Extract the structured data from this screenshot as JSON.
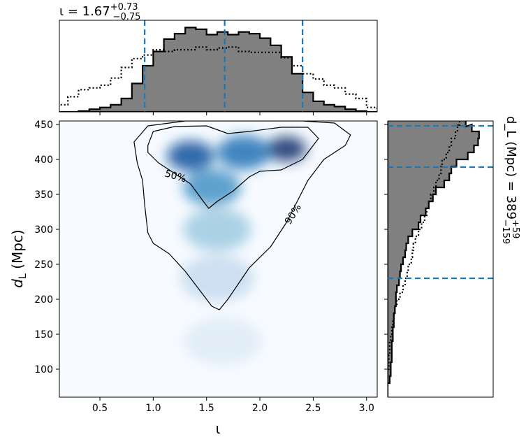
{
  "chart_data": [
    {
      "type": "heatmap",
      "panel": "joint",
      "xlabel": "ι",
      "ylabel": "d_L (Mpc)",
      "xlim": [
        0.12,
        3.1
      ],
      "ylim": [
        60,
        455
      ],
      "xticks": [
        "0.5",
        "1.0",
        "1.5",
        "2.0",
        "2.5",
        "3.0"
      ],
      "yticks": [
        "100",
        "150",
        "200",
        "250",
        "300",
        "350",
        "400",
        "450"
      ],
      "colormap": "Blues",
      "density_peaks": [
        {
          "x": 2.25,
          "y": 415,
          "w": 1.0
        },
        {
          "x": 1.35,
          "y": 405,
          "w": 0.8
        },
        {
          "x": 1.85,
          "y": 410,
          "w": 0.65
        },
        {
          "x": 1.55,
          "y": 360,
          "w": 0.55
        },
        {
          "x": 1.6,
          "y": 300,
          "w": 0.3
        },
        {
          "x": 1.6,
          "y": 230,
          "w": 0.15
        },
        {
          "x": 1.65,
          "y": 140,
          "w": 0.06
        }
      ],
      "contours": [
        {
          "label": "50%",
          "points": [
            [
              0.95,
              420
            ],
            [
              1.0,
              440
            ],
            [
              1.2,
              447
            ],
            [
              1.5,
              448
            ],
            [
              1.7,
              437
            ],
            [
              1.9,
              440
            ],
            [
              2.2,
              446
            ],
            [
              2.45,
              446
            ],
            [
              2.55,
              430
            ],
            [
              2.4,
              400
            ],
            [
              2.2,
              385
            ],
            [
              2.0,
              383
            ],
            [
              1.9,
              375
            ],
            [
              1.75,
              355
            ],
            [
              1.6,
              340
            ],
            [
              1.52,
              330
            ],
            [
              1.47,
              340
            ],
            [
              1.35,
              365
            ],
            [
              1.2,
              380
            ],
            [
              1.05,
              395
            ],
            [
              0.95,
              410
            ]
          ]
        },
        {
          "label": "90%",
          "points": [
            [
              0.82,
              425
            ],
            [
              0.95,
              448
            ],
            [
              1.3,
              455
            ],
            [
              2.4,
              455
            ],
            [
              2.7,
              452
            ],
            [
              2.85,
              435
            ],
            [
              2.8,
              420
            ],
            [
              2.6,
              400
            ],
            [
              2.45,
              370
            ],
            [
              2.35,
              340
            ],
            [
              2.25,
              310
            ],
            [
              2.1,
              275
            ],
            [
              1.9,
              245
            ],
            [
              1.7,
              200
            ],
            [
              1.62,
              185
            ],
            [
              1.55,
              190
            ],
            [
              1.45,
              210
            ],
            [
              1.3,
              240
            ],
            [
              1.15,
              265
            ],
            [
              1.0,
              280
            ],
            [
              0.95,
              295
            ],
            [
              0.92,
              335
            ],
            [
              0.9,
              370
            ],
            [
              0.85,
              395
            ]
          ]
        }
      ]
    },
    {
      "type": "histogram",
      "panel": "top-marginal",
      "title": "ι = 1.67",
      "title_sup": "+0.73",
      "title_sub": "−0.75",
      "bins": [
        0.15,
        0.25,
        0.35,
        0.45,
        0.55,
        0.65,
        0.75,
        0.85,
        0.95,
        1.05,
        1.15,
        1.25,
        1.35,
        1.45,
        1.55,
        1.65,
        1.75,
        1.85,
        1.95,
        2.05,
        2.15,
        2.25,
        2.35,
        2.45,
        2.55,
        2.65,
        2.75,
        2.85,
        2.95,
        3.05
      ],
      "series": [
        {
          "style": "filled",
          "values": [
            0.0,
            0.0,
            0.01,
            0.03,
            0.05,
            0.08,
            0.15,
            0.32,
            0.52,
            0.68,
            0.82,
            0.88,
            0.95,
            0.93,
            0.87,
            0.9,
            0.87,
            0.9,
            0.88,
            0.83,
            0.75,
            0.62,
            0.43,
            0.22,
            0.12,
            0.08,
            0.06,
            0.03,
            0.01,
            0.0
          ]
        },
        {
          "style": "dotted",
          "values": [
            0.08,
            0.17,
            0.25,
            0.27,
            0.3,
            0.38,
            0.5,
            0.6,
            0.64,
            0.7,
            0.68,
            0.7,
            0.7,
            0.73,
            0.7,
            0.72,
            0.73,
            0.68,
            0.67,
            0.67,
            0.67,
            0.61,
            0.52,
            0.43,
            0.37,
            0.3,
            0.27,
            0.2,
            0.15,
            0.05
          ]
        }
      ],
      "ylim": [
        0,
        1.0
      ],
      "quantiles": [
        0.92,
        1.67,
        2.4
      ]
    },
    {
      "type": "histogram",
      "panel": "right-marginal",
      "orientation": "horizontal",
      "label": "d_L (Mpc) = 389",
      "label_sup": "+59",
      "label_sub": "−159",
      "bins": [
        65,
        75,
        85,
        95,
        105,
        115,
        125,
        135,
        145,
        155,
        165,
        175,
        185,
        195,
        205,
        215,
        225,
        235,
        245,
        255,
        265,
        275,
        285,
        295,
        305,
        315,
        325,
        335,
        345,
        355,
        365,
        375,
        385,
        395,
        405,
        415,
        425,
        435,
        445,
        452
      ],
      "series": [
        {
          "style": "filled",
          "values": [
            0.0,
            0.0,
            0.02,
            0.03,
            0.03,
            0.04,
            0.04,
            0.04,
            0.05,
            0.05,
            0.06,
            0.06,
            0.07,
            0.08,
            0.08,
            0.09,
            0.11,
            0.12,
            0.13,
            0.15,
            0.17,
            0.18,
            0.2,
            0.24,
            0.3,
            0.32,
            0.37,
            0.4,
            0.44,
            0.47,
            0.55,
            0.6,
            0.62,
            0.67,
            0.78,
            0.84,
            0.88,
            0.89,
            0.82,
            0.76
          ]
        },
        {
          "style": "dotted",
          "values": [
            0.0,
            0.0,
            0.0,
            0.0,
            0.01,
            0.01,
            0.02,
            0.02,
            0.03,
            0.04,
            0.05,
            0.06,
            0.07,
            0.09,
            0.12,
            0.15,
            0.17,
            0.19,
            0.2,
            0.23,
            0.24,
            0.25,
            0.27,
            0.3,
            0.33,
            0.36,
            0.38,
            0.4,
            0.42,
            0.45,
            0.47,
            0.5,
            0.52,
            0.53,
            0.57,
            0.6,
            0.62,
            0.66,
            0.68,
            0.7
          ]
        }
      ],
      "xlim": [
        0,
        1.0
      ],
      "quantiles": [
        230,
        389,
        448
      ]
    }
  ],
  "colors": {
    "hist_fill": "#808080",
    "hist_edge": "#000000",
    "quantile_line": "#1f77b4",
    "contour": "#000000"
  }
}
